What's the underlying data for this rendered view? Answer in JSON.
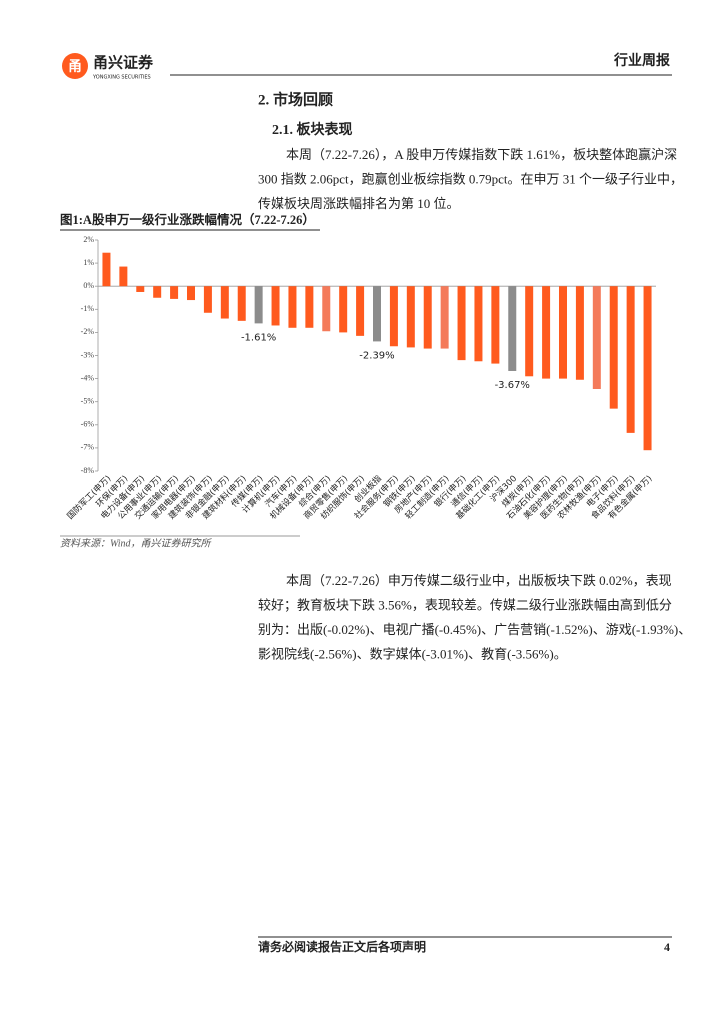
{
  "header": {
    "logo_text": "甬兴证券",
    "logo_sub": "YONGXING SECURITIES",
    "report_type": "行业周报"
  },
  "section": {
    "title": "2. 市场回顾",
    "subtitle": "2.1. 板块表现",
    "paragraph": [
      "本周（7.22-7.26），A 股申万传媒指数下跌 1.61%，板块整体跑赢沪深",
      "300 指数 2.06pct，跑赢创业板综指数 0.79pct。在申万 31 个一级子行业中，",
      "传媒板块周涨跌幅排名为第 10 位。"
    ]
  },
  "chart_data": {
    "type": "bar",
    "title": "图1:A股申万一级行业涨跌幅情况（7.22-7.26）",
    "categories": [
      "国防军工(申万)",
      "环保(申万)",
      "电力设备(申万)",
      "公用事业(申万)",
      "交通运输(申万)",
      "家用电器(申万)",
      "建筑装饰(申万)",
      "非银金融(申万)",
      "建筑材料(申万)",
      "传媒(申万)",
      "计算机(申万)",
      "汽车(申万)",
      "机械设备(申万)",
      "综合(申万)",
      "商贸零售(申万)",
      "纺织服饰(申万)",
      "创业板指",
      "社会服务(申万)",
      "钢铁(申万)",
      "房地产(申万)",
      "轻工制造(申万)",
      "银行(申万)",
      "通信(申万)",
      "基础化工(申万)",
      "沪深300",
      "煤炭(申万)",
      "石油石化(申万)",
      "美容护理(申万)",
      "医药生物(申万)",
      "农林牧渔(申万)",
      "电子(申万)",
      "食品饮料(申万)",
      "有色金属(申万)"
    ],
    "values": [
      1.45,
      0.85,
      -0.25,
      -0.5,
      -0.55,
      -0.6,
      -1.15,
      -1.4,
      -1.5,
      -1.61,
      -1.7,
      -1.8,
      -1.8,
      -1.95,
      -2.0,
      -2.15,
      -2.39,
      -2.6,
      -2.65,
      -2.7,
      -2.7,
      -3.2,
      -3.25,
      -3.35,
      -3.67,
      -3.9,
      -4.0,
      -4.0,
      -4.05,
      -4.45,
      -5.3,
      -6.35,
      -7.1
    ],
    "value_labels": [
      null,
      null,
      null,
      null,
      null,
      null,
      null,
      null,
      null,
      "-1.61%",
      null,
      null,
      null,
      null,
      null,
      null,
      "-2.39%",
      null,
      null,
      null,
      null,
      null,
      null,
      null,
      "-3.67%",
      null,
      null,
      null,
      null,
      null,
      null,
      null,
      null
    ],
    "colors": [
      "#ff5a1e",
      "#ff5a1e",
      "#ff5a1e",
      "#ff5a1e",
      "#ff5a1e",
      "#ff5a1e",
      "#ff5a1e",
      "#ff5a1e",
      "#ff5a1e",
      "#8c8c8c",
      "#ff5a1e",
      "#ff5a1e",
      "#ff5a1e",
      "#f47a5a",
      "#ff5a1e",
      "#ff5a1e",
      "#8c8c8c",
      "#ff5a1e",
      "#ff5a1e",
      "#ff5a1e",
      "#f47a5a",
      "#ff5a1e",
      "#ff5a1e",
      "#ff5a1e",
      "#8c8c8c",
      "#ff5a1e",
      "#ff5a1e",
      "#ff5a1e",
      "#ff5a1e",
      "#f47a5a",
      "#ff5a1e",
      "#ff5a1e",
      "#ff5a1e"
    ],
    "ylim": [
      -8,
      2
    ],
    "yticks": [
      {
        "value": 2,
        "label": "2%"
      },
      {
        "value": 1,
        "label": "1%"
      },
      {
        "value": 0,
        "label": "0%"
      },
      {
        "value": -1,
        "label": "-1%"
      },
      {
        "value": -2,
        "label": "-2%"
      },
      {
        "value": -3,
        "label": "-3%"
      },
      {
        "value": -4,
        "label": "-4%"
      },
      {
        "value": -5,
        "label": "-5%"
      },
      {
        "value": -6,
        "label": "-6%"
      },
      {
        "value": -7,
        "label": "-7%"
      },
      {
        "value": -8,
        "label": "-8%"
      }
    ],
    "source": "资料来源：Wind，甬兴证券研究所"
  },
  "paragraph2": [
    "本周（7.22-7.26）申万传媒二级行业中，出版板块下跌 0.02%，表现",
    "较好；教育板块下跌 3.56%，表现较差。传媒二级行业涨跌幅由高到低分",
    "别为：出版(-0.02%)、电视广播(-0.45%)、广告营销(-1.52%)、游戏(-1.93%)、",
    "影视院线(-2.56%)、数字媒体(-3.01%)、教育(-3.56%)。"
  ],
  "footer": {
    "disclaimer": "请务必阅读报告正文后各项声明",
    "page": "4"
  }
}
